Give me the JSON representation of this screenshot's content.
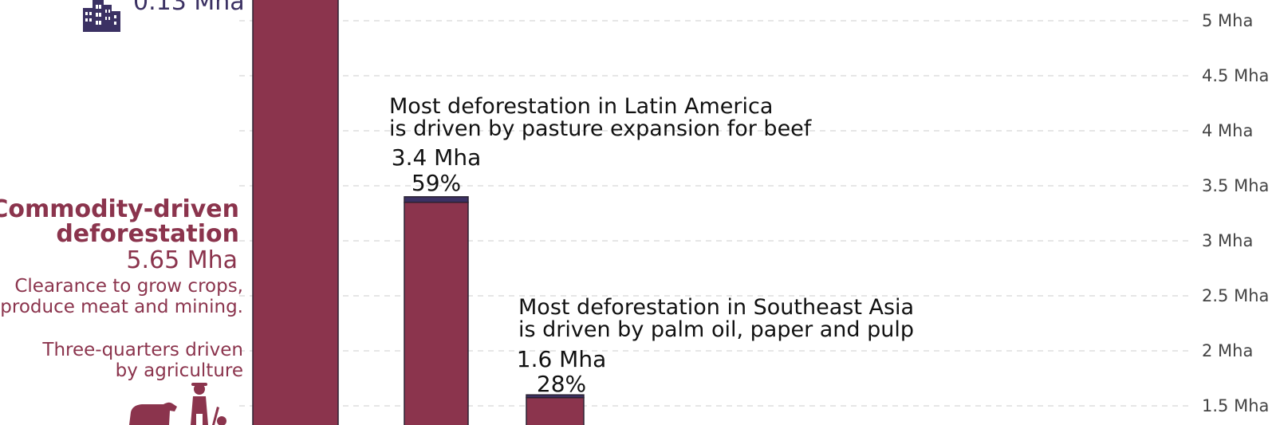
{
  "colors": {
    "commodity": "#8b344d",
    "urban": "#3b3163",
    "bar_stroke": "#2b2233",
    "text_dark": "#111111"
  },
  "urbanization": {
    "value_label": "0.13 Mha",
    "icon": "city-buildings-icon"
  },
  "commodity_block": {
    "title_line1": "Commodity-driven",
    "title_line2": "deforestation",
    "value_label": "5.65 Mha",
    "desc_line1": "Clearance to grow crops,",
    "desc_line2": "produce meat and mining.",
    "note_line1": "Three-quarters driven",
    "note_line2": "by agriculture",
    "icon": "farmer-cattle-icon"
  },
  "annotations": {
    "latin_america_line1": "Most deforestation in Latin America",
    "latin_america_line2": "is driven by pasture expansion for beef",
    "southeast_asia_line1": "Most deforestation in Southeast Asia",
    "southeast_asia_line2": "is driven by palm oil, paper and pulp"
  },
  "chart_data": {
    "type": "bar",
    "y_ticks": [
      "1.5 Mha",
      "2 Mha",
      "2.5 Mha",
      "3 Mha",
      "3.5 Mha",
      "4 Mha",
      "4.5 Mha",
      "5 Mha"
    ],
    "y_tick_values": [
      1.5,
      2,
      2.5,
      3,
      3.5,
      4,
      4.5,
      5
    ],
    "bars": [
      {
        "commodity": 5.65,
        "urban": 0.13
      },
      {
        "commodity": 3.35,
        "urban": 0.05,
        "total_label": "3.4 Mha",
        "share_label": "59%"
      },
      {
        "commodity": 1.575,
        "urban": 0.025,
        "total_label": "1.6 Mha",
        "share_label": "28%"
      }
    ],
    "grid": true
  }
}
